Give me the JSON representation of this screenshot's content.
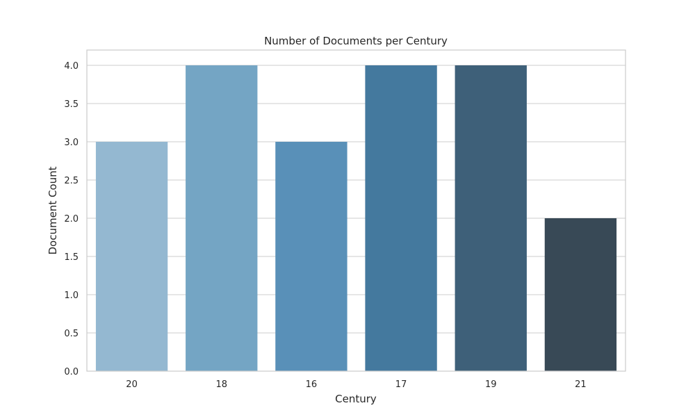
{
  "chart_data": {
    "type": "bar",
    "title": "Number of Documents per Century",
    "xlabel": "Century",
    "ylabel": "Document Count",
    "categories": [
      "20",
      "18",
      "16",
      "17",
      "19",
      "21"
    ],
    "values": [
      3,
      4,
      3,
      4,
      4,
      2
    ],
    "ylim": [
      0,
      4.2
    ],
    "yticks": [
      "0.0",
      "0.5",
      "1.0",
      "1.5",
      "2.0",
      "2.5",
      "3.0",
      "3.5",
      "4.0"
    ],
    "grid": true,
    "bar_colors": [
      "#94b8d1",
      "#74a5c4",
      "#5990b8",
      "#44799e",
      "#3e6079",
      "#384956"
    ],
    "grid_color": "#cccccc",
    "frame_color": "#cccccc"
  }
}
